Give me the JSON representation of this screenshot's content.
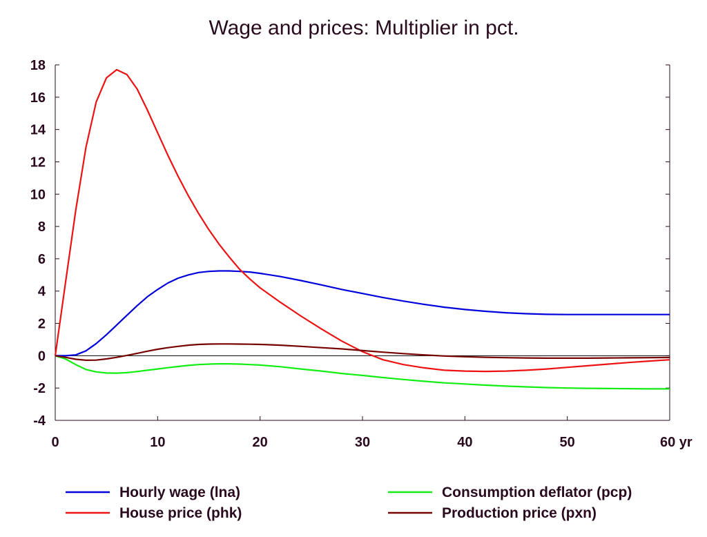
{
  "chart_data": {
    "type": "line",
    "title": "Wage and prices: Multiplier in pct.",
    "xlabel": "",
    "ylabel": "",
    "x_unit_label": "yr",
    "xlim": [
      0,
      60
    ],
    "ylim": [
      -4,
      18
    ],
    "x_ticks": [
      0,
      10,
      20,
      30,
      40,
      50,
      60
    ],
    "y_ticks": [
      -4,
      -2,
      0,
      2,
      4,
      6,
      8,
      10,
      12,
      14,
      16,
      18
    ],
    "x_tick_labels": [
      "0",
      "10",
      "20",
      "30",
      "40",
      "50",
      "60"
    ],
    "y_tick_labels": [
      "-4",
      "-2",
      "0",
      "2",
      "4",
      "6",
      "8",
      "10",
      "12",
      "14",
      "16",
      "18"
    ],
    "grid": false,
    "legend_position": "bottom",
    "series": [
      {
        "name": "Hourly wage (lna)",
        "color": "#0000dd",
        "x": [
          0,
          1,
          2,
          3,
          4,
          5,
          6,
          7,
          8,
          9,
          10,
          11,
          12,
          13,
          14,
          15,
          16,
          17,
          18,
          19,
          20,
          22,
          24,
          26,
          28,
          30,
          32,
          34,
          36,
          38,
          40,
          42,
          44,
          46,
          48,
          50,
          52,
          54,
          56,
          58,
          60
        ],
        "y": [
          0,
          0,
          0.05,
          0.3,
          0.75,
          1.3,
          1.9,
          2.5,
          3.1,
          3.65,
          4.1,
          4.5,
          4.8,
          5.0,
          5.15,
          5.22,
          5.25,
          5.25,
          5.22,
          5.18,
          5.1,
          4.9,
          4.65,
          4.38,
          4.1,
          3.85,
          3.6,
          3.38,
          3.18,
          3.0,
          2.86,
          2.75,
          2.66,
          2.6,
          2.56,
          2.55,
          2.55,
          2.55,
          2.55,
          2.55,
          2.55
        ]
      },
      {
        "name": "House price (phk)",
        "color": "#ee1111",
        "x": [
          0,
          1,
          2,
          3,
          4,
          5,
          6,
          7,
          8,
          9,
          10,
          11,
          12,
          13,
          14,
          15,
          16,
          17,
          18,
          19,
          20,
          22,
          24,
          26,
          28,
          30,
          32,
          34,
          36,
          38,
          40,
          42,
          44,
          46,
          48,
          50,
          52,
          54,
          56,
          58,
          60
        ],
        "y": [
          0,
          4.5,
          9.0,
          12.9,
          15.7,
          17.2,
          17.7,
          17.4,
          16.5,
          15.2,
          13.8,
          12.4,
          11.1,
          9.9,
          8.8,
          7.8,
          6.9,
          6.1,
          5.35,
          4.75,
          4.2,
          3.3,
          2.45,
          1.65,
          0.9,
          0.25,
          -0.25,
          -0.55,
          -0.75,
          -0.9,
          -0.95,
          -0.97,
          -0.95,
          -0.9,
          -0.82,
          -0.72,
          -0.62,
          -0.52,
          -0.42,
          -0.33,
          -0.25
        ]
      },
      {
        "name": "Consumption deflator (pcp)",
        "color": "#11ee11",
        "x": [
          0,
          1,
          2,
          3,
          4,
          5,
          6,
          7,
          8,
          9,
          10,
          11,
          12,
          13,
          14,
          15,
          16,
          17,
          18,
          19,
          20,
          22,
          24,
          26,
          28,
          30,
          32,
          34,
          36,
          38,
          40,
          42,
          44,
          46,
          48,
          50,
          52,
          54,
          56,
          58,
          60
        ],
        "y": [
          0,
          -0.2,
          -0.55,
          -0.85,
          -1.0,
          -1.07,
          -1.08,
          -1.05,
          -0.98,
          -0.9,
          -0.82,
          -0.74,
          -0.67,
          -0.6,
          -0.55,
          -0.52,
          -0.5,
          -0.5,
          -0.52,
          -0.55,
          -0.58,
          -0.68,
          -0.82,
          -0.95,
          -1.1,
          -1.22,
          -1.35,
          -1.47,
          -1.58,
          -1.68,
          -1.75,
          -1.82,
          -1.88,
          -1.93,
          -1.97,
          -2.0,
          -2.02,
          -2.03,
          -2.04,
          -2.05,
          -2.05
        ]
      },
      {
        "name": "Production price (pxn)",
        "color": "#770000",
        "x": [
          0,
          1,
          2,
          3,
          4,
          5,
          6,
          7,
          8,
          9,
          10,
          11,
          12,
          13,
          14,
          15,
          16,
          17,
          18,
          19,
          20,
          22,
          24,
          26,
          28,
          30,
          32,
          34,
          36,
          38,
          40,
          42,
          44,
          46,
          48,
          50,
          52,
          54,
          56,
          58,
          60
        ],
        "y": [
          0,
          -0.1,
          -0.22,
          -0.28,
          -0.27,
          -0.2,
          -0.1,
          0.02,
          0.15,
          0.28,
          0.4,
          0.5,
          0.58,
          0.65,
          0.7,
          0.72,
          0.73,
          0.73,
          0.72,
          0.71,
          0.7,
          0.65,
          0.58,
          0.5,
          0.42,
          0.32,
          0.22,
          0.13,
          0.05,
          -0.02,
          -0.06,
          -0.1,
          -0.12,
          -0.14,
          -0.15,
          -0.15,
          -0.15,
          -0.14,
          -0.13,
          -0.12,
          -0.11
        ]
      }
    ]
  }
}
